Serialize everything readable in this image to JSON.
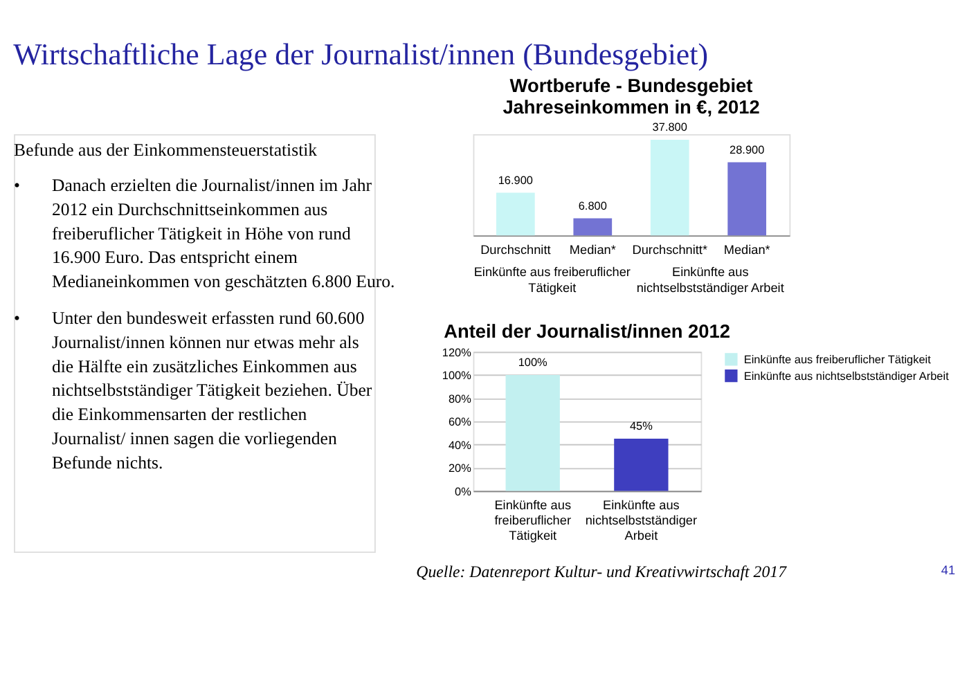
{
  "chart_data": [
    {
      "type": "other",
      "title": "Wirtschaftliche Lage der Journalist/innen (Bundesgebiet)",
      "subtitle": "Befunde aus der Einkommensteuerstatistik",
      "annotations": [
        "• Danach erzielten die Journalist/innen im Jahr 2012 ein Durchschnittseinkommen aus freiberuflicher Tätigkeit in Höhe von rund 16.900 Euro. Das entspricht einem Medianeinkommen von geschätzten 6.800 Euro.",
        "• Unter den bundesweit erfassten rund 60.600 Journalist/innen können nur etwas mehr als die Hälfte ein zusätzliches Einkommen aus nichtselbstständiger Tätigkeit beziehen. Über die Einkommensarten der restlichen Journalist/ innen sagen die vorliegenden Befunde nichts."
      ]
    },
    {
      "type": "bar",
      "title": "Wortberufe - Bundesgebiet Jahreseinkommen in €, 2012",
      "categories": [
        "Durchschnitt",
        "Median*",
        "Durchschnitt*",
        "Median*"
      ],
      "values": [
        16900,
        6800,
        37800,
        28900
      ],
      "colors": [
        "#c9f6f6",
        "#7373d3",
        "#c9f6f6",
        "#7373d3"
      ],
      "value_labels": [
        "16.900",
        "6.800",
        "37.800",
        "28.900"
      ],
      "annotations": [
        "Einkünfte aus freiberuflicher Tätigkeit",
        "Einkünfte aus nichtselbstständiger Arbeit"
      ]
    },
    {
      "type": "bar",
      "title": "Anteil der Journalist/innen 2012",
      "categories": [
        "Einkünfte aus freiberuflicher Tätigkeit",
        "Einkünfte aus nichtselbstständiger Arbeit"
      ],
      "series": [
        {
          "name": "Einkünfte aus freiberuflicher Tätigkeit",
          "color": "#c2f0f0",
          "values": [
            100,
            null
          ],
          "value_labels": [
            "100%",
            null
          ]
        },
        {
          "name": "Einkünfte aus nichtselbstständiger Arbeit",
          "color": "#3e3ebf",
          "values": [
            null,
            45
          ],
          "value_labels": [
            null,
            "45%"
          ]
        }
      ],
      "ylim": [
        0,
        120
      ],
      "yticks": [
        {
          "value": 0,
          "label": "0%"
        },
        {
          "value": 20,
          "label": "20%"
        },
        {
          "value": 40,
          "label": "40%"
        },
        {
          "value": 60,
          "label": "60%"
        },
        {
          "value": 80,
          "label": "80%"
        },
        {
          "value": 100,
          "label": "100%"
        },
        {
          "value": 120,
          "label": "120%"
        }
      ],
      "grid": "y",
      "legend": "right",
      "annotations": [
        "Quelle: Datenreport Kultur- und Kreativwirtschaft 2017",
        "41"
      ]
    }
  ]
}
